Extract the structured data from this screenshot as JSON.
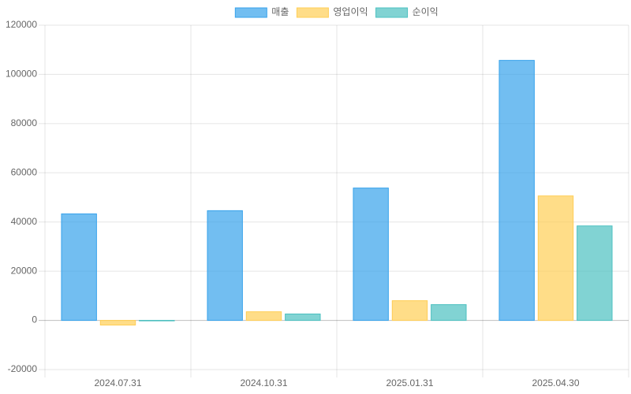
{
  "chart_data": {
    "type": "bar",
    "categories": [
      "2024.07.31",
      "2024.10.31",
      "2025.01.31",
      "2025.04.30"
    ],
    "series": [
      {
        "name": "매출",
        "color": "#36a2eb",
        "values": [
          43300,
          44600,
          53800,
          105700
        ]
      },
      {
        "name": "영업이익",
        "color": "#ffce56",
        "values": [
          -1900,
          3500,
          8000,
          50600
        ]
      },
      {
        "name": "순이익",
        "color": "#4bc0c0",
        "values": [
          -200,
          2600,
          6400,
          38400
        ]
      }
    ],
    "ylim": [
      -20000,
      120000
    ],
    "yticks": [
      -20000,
      0,
      20000,
      40000,
      60000,
      80000,
      100000,
      120000
    ],
    "grid": true,
    "legend": "top"
  }
}
